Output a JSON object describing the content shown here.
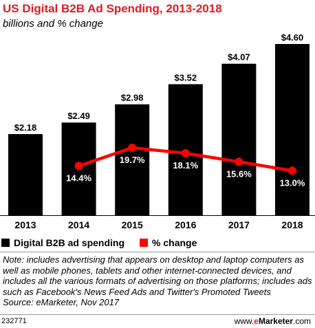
{
  "header": {
    "title": "US Digital B2B Ad Spending, 2013-2018",
    "subtitle": "billions and % change"
  },
  "chart_data": {
    "type": "bar",
    "title": "US Digital B2B Ad Spending, 2013-2018",
    "subtitle": "billions and % change",
    "categories": [
      "2013",
      "2014",
      "2015",
      "2016",
      "2017",
      "2018"
    ],
    "series": [
      {
        "name": "Digital B2B ad spending",
        "type": "bar",
        "color": "#000000",
        "values": [
          2.18,
          2.49,
          2.98,
          3.52,
          4.07,
          4.6
        ],
        "labels": [
          "$2.18",
          "$2.49",
          "$2.98",
          "$3.52",
          "$4.07",
          "$4.60"
        ]
      },
      {
        "name": "% change",
        "type": "line",
        "color": "#ff0000",
        "x": [
          "2014",
          "2015",
          "2016",
          "2017",
          "2018"
        ],
        "values": [
          14.4,
          19.7,
          18.1,
          15.6,
          13.0
        ],
        "labels": [
          "14.4%",
          "19.7%",
          "18.1%",
          "15.6%",
          "13.0%"
        ]
      }
    ],
    "bar_ylim": [
      0,
      4.6
    ],
    "line_ylim": [
      0,
      50
    ],
    "grid": false,
    "legend_position": "bottom-left"
  },
  "legend": {
    "items": [
      {
        "label": "Digital B2B ad spending",
        "color": "#000000"
      },
      {
        "label": "% change",
        "color": "#ff0000"
      }
    ]
  },
  "note": {
    "text": "Note: includes advertising that appears on desktop and laptop computers as well as mobile phones, tablets and other internet-connected devices, and includes all the various formats of advertising on those platforms; includes ads such as Facebook's News Feed Ads and Twitter's Promoted Tweets",
    "source": "Source: eMarketer, Nov 2017"
  },
  "footer": {
    "chart_id": "232771",
    "brand_prefix": "www.",
    "brand_e": "e",
    "brand_name": "Marketer",
    "brand_suffix": ".com"
  }
}
